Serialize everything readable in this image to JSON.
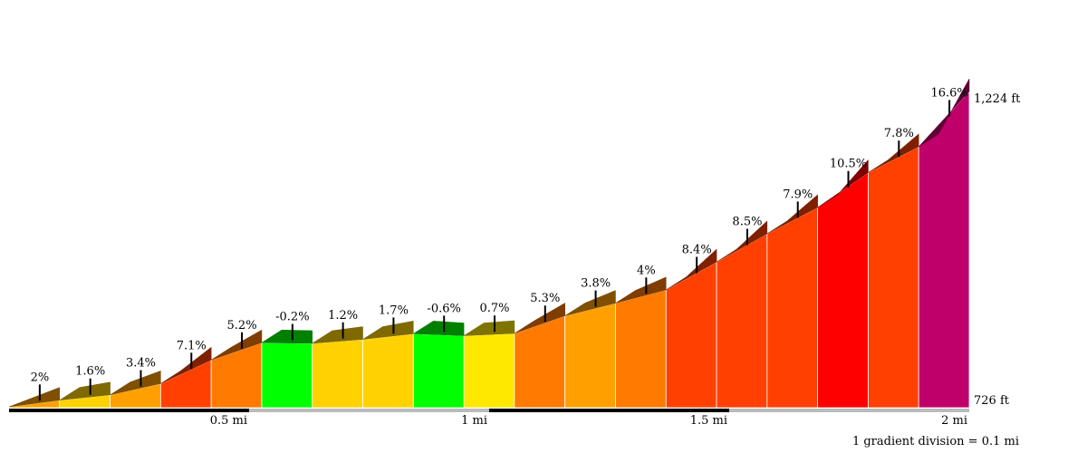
{
  "chart_data": {
    "type": "area",
    "title": "",
    "xlabel": "",
    "ylabel": "",
    "segment_length_mi": 0.1,
    "x_range_mi": [
      0,
      2
    ],
    "y_range_ft": [
      726,
      1224
    ],
    "gradients": [
      {
        "label": "2%",
        "value": 2.0
      },
      {
        "label": "1.6%",
        "value": 1.6
      },
      {
        "label": "3.4%",
        "value": 3.4
      },
      {
        "label": "7.1%",
        "value": 7.1
      },
      {
        "label": "5.2%",
        "value": 5.2
      },
      {
        "label": "-0.2%",
        "value": -0.2
      },
      {
        "label": "1.2%",
        "value": 1.2
      },
      {
        "label": "1.7%",
        "value": 1.7
      },
      {
        "label": "-0.6%",
        "value": -0.6
      },
      {
        "label": "0.7%",
        "value": 0.7
      },
      {
        "label": "5.3%",
        "value": 5.3
      },
      {
        "label": "3.8%",
        "value": 3.8
      },
      {
        "label": "4%",
        "value": 4.0
      },
      {
        "label": "8.4%",
        "value": 8.4
      },
      {
        "label": "8.5%",
        "value": 8.5
      },
      {
        "label": "7.9%",
        "value": 7.9
      },
      {
        "label": "10.5%",
        "value": 10.5
      },
      {
        "label": "7.8%",
        "value": 7.8
      },
      {
        "label": "16.6%",
        "value": 16.6
      }
    ],
    "x_ticks": [
      {
        "value": 0.5,
        "label": "0.5 mi"
      },
      {
        "value": 1.0,
        "label": "1 mi"
      },
      {
        "value": 1.5,
        "label": "1.5 mi"
      },
      {
        "value": 2.0,
        "label": "2 mi"
      }
    ],
    "elevation_labels": {
      "max": "1,224 ft",
      "min": "726 ft"
    },
    "note": "1 gradient division = 0.1 mi",
    "colors": {
      "green": "#00ff00",
      "yellow": "#ffe800",
      "gold": "#ffd200",
      "orange": "#ffa000",
      "dark_orange": "#ff7a00",
      "red_orange": "#ff4000",
      "red": "#ff0000",
      "magenta": "#c0006a"
    }
  }
}
